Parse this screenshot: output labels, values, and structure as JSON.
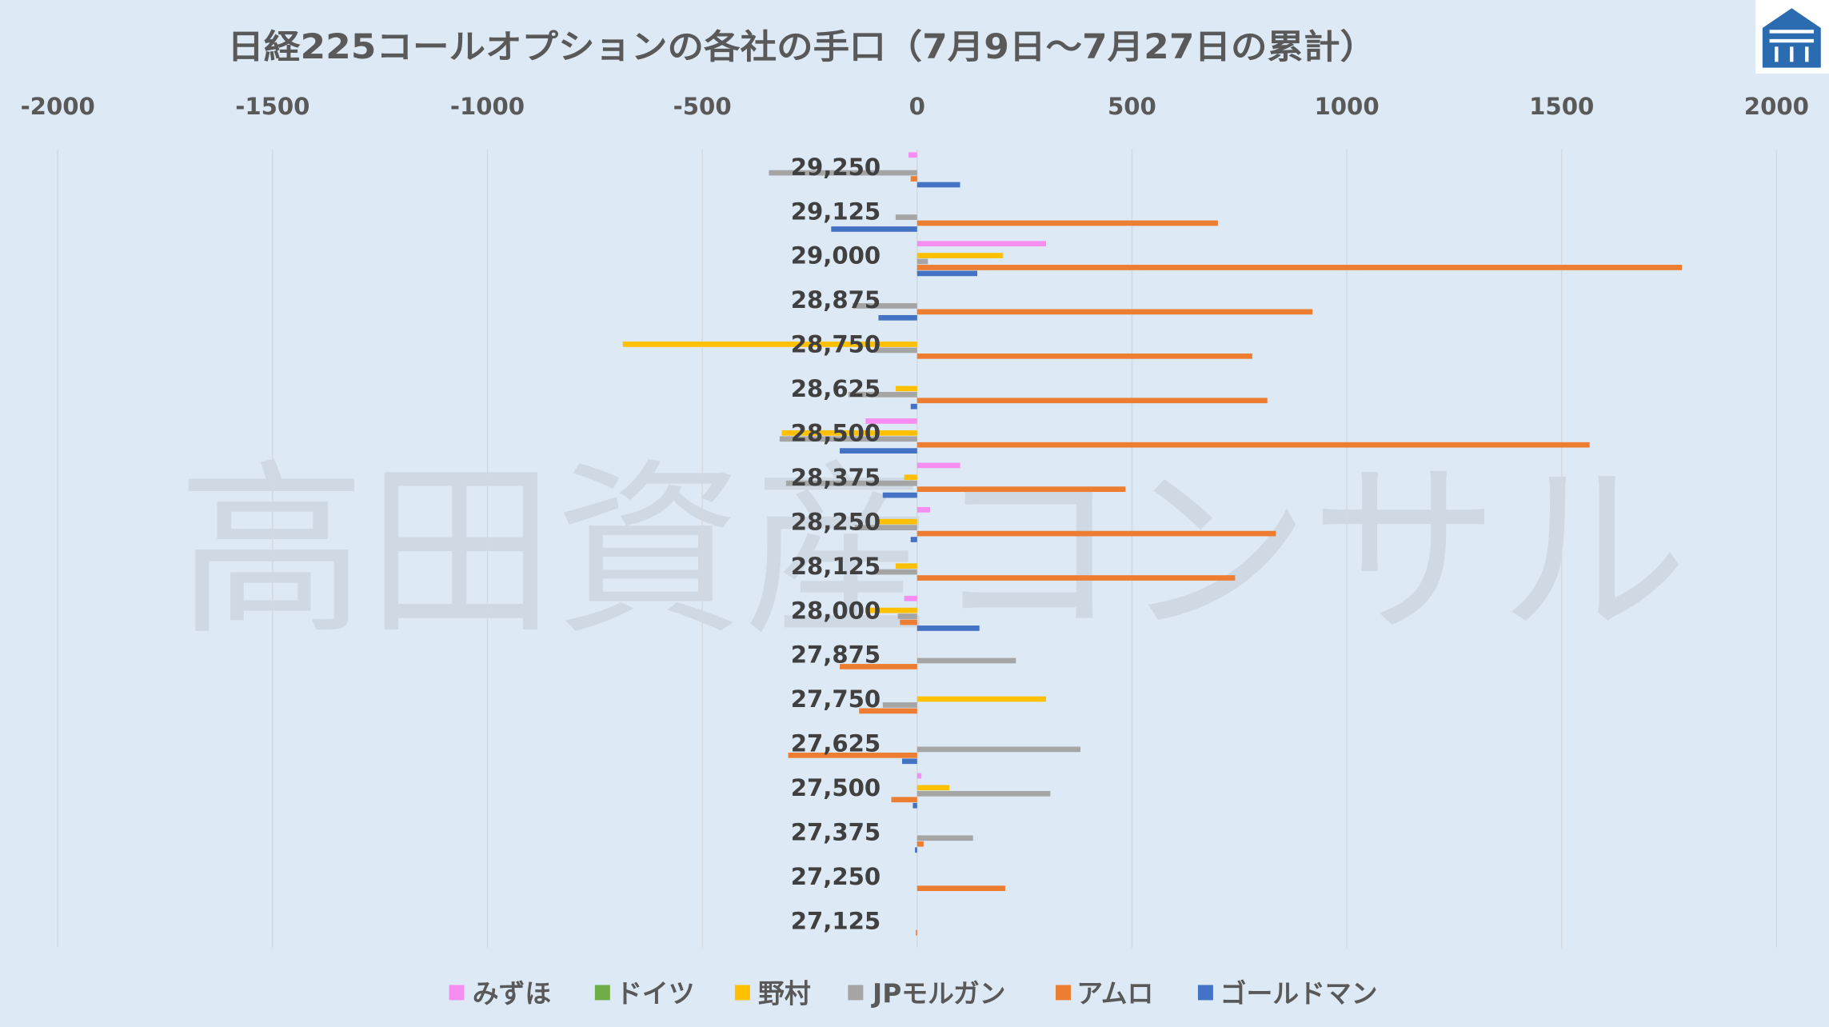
{
  "watermark": "高田資産コンサル",
  "logo": {
    "icon": "house-logo-icon",
    "color": "#2b6cb0"
  },
  "background_color": "#dde9f5",
  "chart_data": {
    "type": "bar",
    "orientation": "horizontal",
    "title": "日経225コールオプションの各社の手口（7月9日～7月27日の累計）",
    "xlim": [
      -2000,
      2000
    ],
    "x_ticks": [
      "-2000",
      "-1500",
      "-1000",
      "-500",
      "0",
      "500",
      "1000",
      "1500",
      "2000"
    ],
    "grid": true,
    "legend_position": "bottom",
    "categories": [
      "29,250",
      "29,125",
      "29,000",
      "28,875",
      "28,750",
      "28,625",
      "28,500",
      "28,375",
      "28,250",
      "28,125",
      "28,000",
      "27,875",
      "27,750",
      "27,625",
      "27,500",
      "27,375",
      "27,250",
      "27,125"
    ],
    "series": [
      {
        "name": "みずほ",
        "color": "#f58ef0",
        "values": [
          -20,
          0,
          300,
          0,
          0,
          0,
          -120,
          100,
          30,
          0,
          -30,
          0,
          0,
          0,
          10,
          0,
          0,
          0
        ]
      },
      {
        "name": "ドイツ",
        "color": "#70ad47",
        "values": [
          0,
          0,
          0,
          0,
          0,
          0,
          0,
          0,
          0,
          0,
          0,
          0,
          0,
          0,
          0,
          0,
          0,
          0
        ]
      },
      {
        "name": "野村",
        "color": "#ffc000",
        "values": [
          0,
          0,
          200,
          0,
          -685,
          -50,
          -315,
          -30,
          -90,
          -50,
          -120,
          0,
          300,
          0,
          75,
          0,
          0,
          0
        ]
      },
      {
        "name": "JPモルガン",
        "color": "#a5a5a5",
        "values": [
          -345,
          -50,
          25,
          -150,
          -100,
          -160,
          -320,
          -305,
          -145,
          -100,
          -45,
          230,
          -80,
          380,
          310,
          130,
          0,
          0
        ]
      },
      {
        "name": "アムロ",
        "color": "#ed7d31",
        "values": [
          -15,
          700,
          1780,
          920,
          780,
          815,
          1565,
          485,
          835,
          740,
          -40,
          -180,
          -135,
          -300,
          -60,
          15,
          205,
          -3
        ]
      },
      {
        "name": "ゴールドマン",
        "color": "#4472c4",
        "values": [
          100,
          -200,
          140,
          -90,
          0,
          -15,
          -180,
          -80,
          -15,
          0,
          145,
          0,
          0,
          -35,
          -10,
          -5,
          0,
          0
        ]
      }
    ]
  }
}
